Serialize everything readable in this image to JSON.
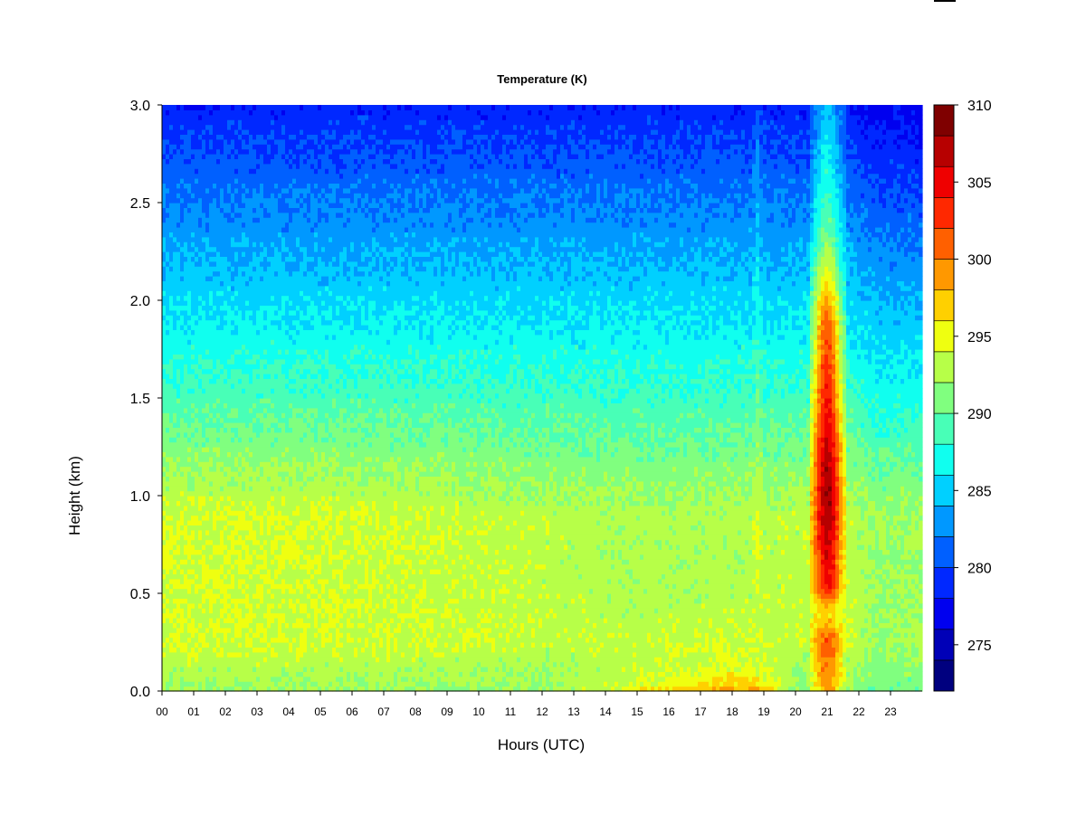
{
  "chart_data": {
    "type": "heatmap",
    "title": "Temperature (K)",
    "xlabel": "Hours (UTC)",
    "ylabel": "Height (km)",
    "xlim": [
      0,
      24
    ],
    "ylim": [
      0,
      3.0
    ],
    "x_ticks": [
      "00",
      "01",
      "02",
      "03",
      "04",
      "05",
      "06",
      "07",
      "08",
      "09",
      "10",
      "11",
      "12",
      "13",
      "14",
      "15",
      "16",
      "17",
      "18",
      "19",
      "20",
      "21",
      "22",
      "23"
    ],
    "y_ticks": [
      "0.0",
      "0.5",
      "1.0",
      "1.5",
      "2.0",
      "2.5",
      "3.0"
    ],
    "colorbar": {
      "min": 272,
      "max": 310,
      "step": 2,
      "tick_labels": [
        "275",
        "280",
        "285",
        "290",
        "295",
        "300",
        "305",
        "310"
      ],
      "colors": [
        "#00007F",
        "#0000B7",
        "#0000EF",
        "#0028FF",
        "#0060FF",
        "#0098FF",
        "#00D0FF",
        "#10FFEF",
        "#48FFB7",
        "#80FF7F",
        "#B7FF48",
        "#EFFF10",
        "#FFD000",
        "#FF9800",
        "#FF6000",
        "#FF2800",
        "#EF0000",
        "#B70000",
        "#7F0000"
      ]
    },
    "features": {
      "warm_event_hours": [
        20.4,
        21.6
      ],
      "warm_event_peak_K": 308,
      "surface_warming_hours": [
        12,
        20
      ],
      "surface_warming_peak_K": 300
    }
  }
}
